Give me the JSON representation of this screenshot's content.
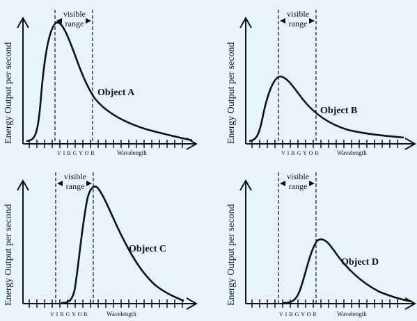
{
  "background": "#e8f4fb",
  "ink": "#111111",
  "y_axis_label": "Energy Output per second",
  "x_axis_label": "Wavelength",
  "visible_label_line1": "visible",
  "visible_label_line2": "range",
  "color_letters": "V I B G Y O R",
  "panels": [
    {
      "object_label": "Object A"
    },
    {
      "object_label": "Object B"
    },
    {
      "object_label": "Object C"
    },
    {
      "object_label": "Object D"
    }
  ]
}
